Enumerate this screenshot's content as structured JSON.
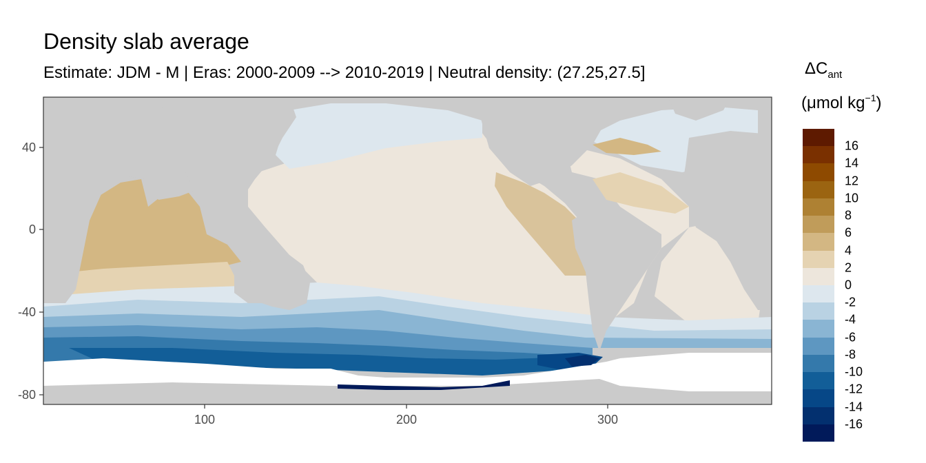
{
  "title": "Density slab average",
  "subtitle": "Estimate: JDM - M | Eras: 2000-2009 --> 2010-2019 | Neutral density: (27.25,27.5]",
  "legend": {
    "title_symbol": "ΔC",
    "title_subscript": "ant",
    "unit_prefix": "(μmol kg",
    "unit_superscript": "−1",
    "unit_suffix": ")",
    "labels": [
      "16",
      "14",
      "12",
      "10",
      "8",
      "6",
      "4",
      "2",
      "0",
      "-2",
      "-4",
      "-6",
      "-8",
      "-10",
      "-12",
      "-14",
      "-16"
    ],
    "colors": [
      "#5e1a00",
      "#7a3000",
      "#8e4a00",
      "#9b6411",
      "#ae8133",
      "#c09c5a",
      "#d3b783",
      "#e5d3b2",
      "#ede6dc",
      "#dde7ee",
      "#b9d2e3",
      "#8ab5d3",
      "#5e97c1",
      "#3479ab",
      "#125e98",
      "#064787",
      "#03306f",
      "#011a5a"
    ]
  },
  "axes": {
    "x_ticks": [
      "100",
      "200",
      "300"
    ],
    "y_ticks": [
      "40",
      "0",
      "-40",
      "-80"
    ]
  },
  "map_colors": {
    "land": "#cbcbcb",
    "no_data": "#ffffff",
    "panel_border": "#333333"
  }
}
